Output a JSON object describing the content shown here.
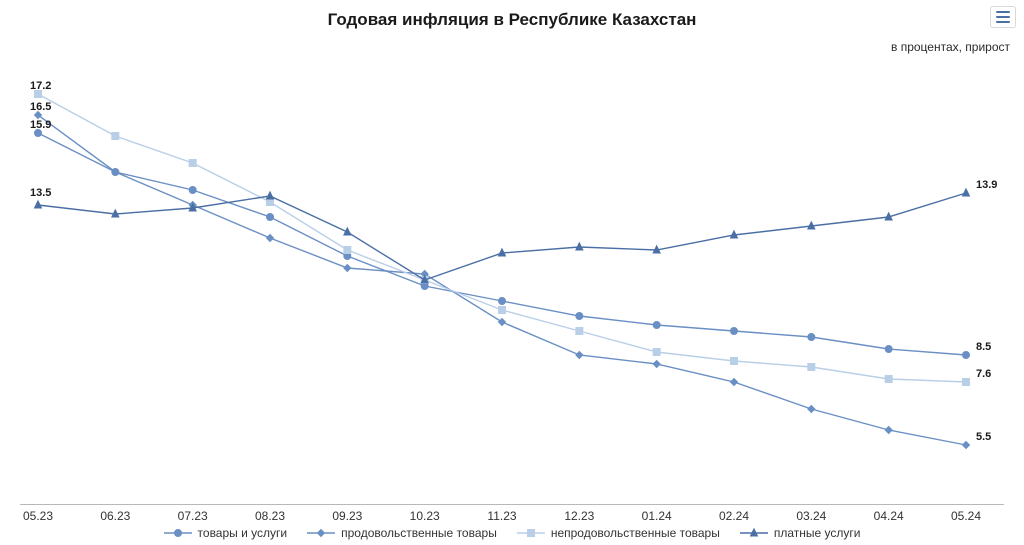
{
  "title": "Годовая инфляция в Республике Казахстан",
  "subtitle": "в процентах, прирост",
  "title_fontsize": 17,
  "subtitle_fontsize": 12,
  "background_color": "#ffffff",
  "axis_color": "#b8b8b8",
  "text_color": "#1a1a1a",
  "categories": [
    "05.23",
    "06.23",
    "07.23",
    "08.23",
    "09.23",
    "10.23",
    "11.23",
    "12.23",
    "01.24",
    "02.24",
    "03.24",
    "04.24",
    "05.24"
  ],
  "ylim": [
    4,
    18
  ],
  "xlabel_fontsize": 12,
  "line_width": 1.4,
  "marker_size": 3.5,
  "series": [
    {
      "key": "goods_services",
      "label": "товары и услуги",
      "color": "#6a8fc4",
      "marker": "circle",
      "marker_fill": "#6a8fc4",
      "values": [
        15.9,
        14.6,
        14.0,
        13.1,
        11.8,
        10.8,
        10.3,
        9.8,
        9.5,
        9.3,
        9.1,
        8.7,
        8.5
      ],
      "first_label": "15.9",
      "last_label": "8.5",
      "first_label_offset_y": -8,
      "last_label_offset_y": -14
    },
    {
      "key": "food",
      "label": "продовольственные товары",
      "color": "#6a8fc4",
      "marker": "diamond",
      "marker_fill": "#6a8fc4",
      "values": [
        16.5,
        14.6,
        13.5,
        12.4,
        11.4,
        11.2,
        9.6,
        8.5,
        8.2,
        7.6,
        6.7,
        6.0,
        5.5
      ],
      "first_label": "16.5",
      "last_label": "5.5",
      "first_label_offset_y": -8,
      "last_label_offset_y": -14
    },
    {
      "key": "nonfood",
      "label": "непродовольственные товары",
      "color": "#b9cfe8",
      "marker": "square",
      "marker_fill": "#b9cfe8",
      "values": [
        17.2,
        15.8,
        14.9,
        13.6,
        12.0,
        11.0,
        10.0,
        9.3,
        8.6,
        8.3,
        8.1,
        7.7,
        7.6
      ],
      "first_label": "17.2",
      "last_label": "7.6",
      "first_label_offset_y": -8,
      "last_label_offset_y": -14
    },
    {
      "key": "services",
      "label": "платные услуги",
      "color": "#4a6fa5",
      "marker": "triangle",
      "marker_fill": "#4a6fa5",
      "values": [
        13.5,
        13.2,
        13.4,
        13.8,
        12.6,
        11.0,
        11.9,
        12.1,
        12.0,
        12.5,
        12.8,
        13.1,
        13.9
      ],
      "first_label": "13.5",
      "last_label": "13.9",
      "first_label_offset_y": -12,
      "last_label_offset_y": -14
    }
  ],
  "legend_order": [
    "goods_services",
    "food",
    "nonfood",
    "services"
  ]
}
